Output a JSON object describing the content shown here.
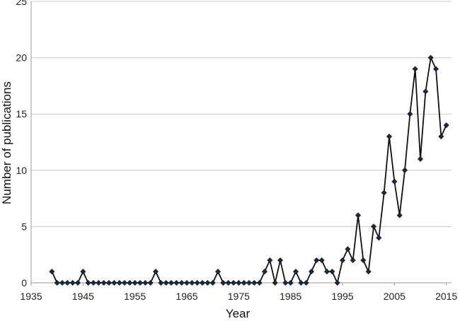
{
  "chart_data": {
    "type": "line",
    "xlabel": "Year",
    "ylabel": "Number of publications",
    "xlim": [
      1935,
      2016
    ],
    "ylim": [
      0,
      25
    ],
    "xticks": [
      1935,
      1945,
      1955,
      1965,
      1975,
      1985,
      1995,
      2005,
      2015
    ],
    "yticks": [
      0,
      5,
      10,
      15,
      20,
      25
    ],
    "grid": "horizontal",
    "x": [
      1939,
      1940,
      1941,
      1942,
      1943,
      1944,
      1945,
      1946,
      1947,
      1948,
      1949,
      1950,
      1951,
      1952,
      1953,
      1954,
      1955,
      1956,
      1957,
      1958,
      1959,
      1960,
      1961,
      1962,
      1963,
      1964,
      1965,
      1966,
      1967,
      1968,
      1969,
      1970,
      1971,
      1972,
      1973,
      1974,
      1975,
      1976,
      1977,
      1978,
      1979,
      1980,
      1981,
      1982,
      1983,
      1984,
      1985,
      1986,
      1987,
      1988,
      1989,
      1990,
      1991,
      1992,
      1993,
      1994,
      1995,
      1996,
      1997,
      1998,
      1999,
      2000,
      2001,
      2002,
      2003,
      2004,
      2005,
      2006,
      2007,
      2008,
      2009,
      2010,
      2011,
      2012,
      2013,
      2014,
      2015
    ],
    "series": [
      {
        "values": [
          1,
          0,
          0,
          0,
          0,
          0,
          1,
          0,
          0,
          0,
          0,
          0,
          0,
          0,
          0,
          0,
          0,
          0,
          0,
          0,
          1,
          0,
          0,
          0,
          0,
          0,
          0,
          0,
          0,
          0,
          0,
          0,
          1,
          0,
          0,
          0,
          0,
          0,
          0,
          0,
          0,
          1,
          2,
          0,
          2,
          0,
          0,
          1,
          0,
          0,
          1,
          2,
          2,
          1,
          1,
          0,
          2,
          3,
          2,
          6,
          2,
          1,
          5,
          4,
          8,
          13,
          9,
          6,
          10,
          15,
          19,
          11,
          17,
          20,
          19,
          13,
          14
        ]
      }
    ]
  }
}
